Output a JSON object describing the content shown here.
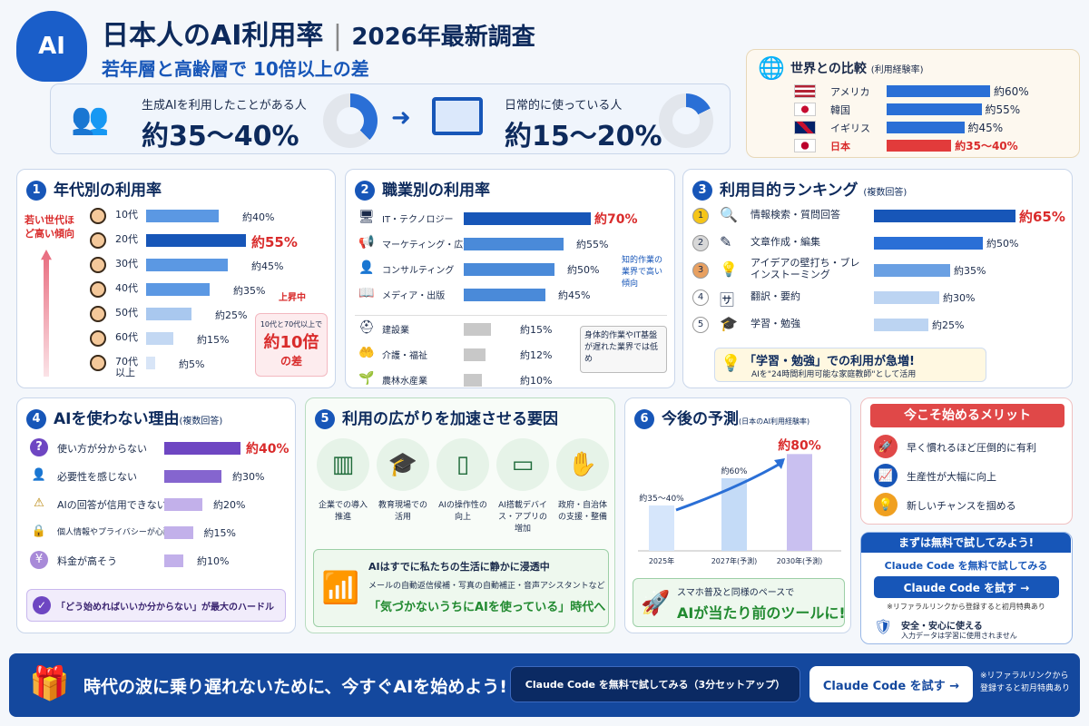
{
  "header": {
    "title": "日本人のAI利用率",
    "year": "2026年最新調査",
    "subtitle": "若年層と高齢層で 10倍以上の差",
    "logo": "AI"
  },
  "stats": {
    "gen_label": "生成AIを利用したことがある人",
    "gen_value": "約35〜40%",
    "daily_label": "日常的に使っている人",
    "daily_value": "約15〜20%",
    "gen_fill": 0.375,
    "daily_fill": 0.175
  },
  "world": {
    "title": "世界との比較",
    "note": "(利用経験率)",
    "items": [
      {
        "name": "アメリカ",
        "value": "約60%",
        "fill": 0.6,
        "flag": "us-flag"
      },
      {
        "name": "韓国",
        "value": "約55%",
        "fill": 0.55,
        "flag": "kr-flag"
      },
      {
        "name": "イギリス",
        "value": "約45%",
        "fill": 0.45,
        "flag": "uk-flag"
      },
      {
        "name": "日本",
        "value": "約35〜40%",
        "fill": 0.375,
        "flag": "jp-flag"
      }
    ]
  },
  "age": {
    "num": "1",
    "title": "年代別の利用率",
    "side": "若い世代ほど高い傾向",
    "rising": "上昇中",
    "gap_pre": "10代と70代以上で",
    "gap_num": "約10倍",
    "gap_post": "の差",
    "items": [
      {
        "label": "10代",
        "value": "約40%",
        "fill": 0.4
      },
      {
        "label": "20代",
        "value": "約55%",
        "fill": 0.55
      },
      {
        "label": "30代",
        "value": "約45%",
        "fill": 0.45
      },
      {
        "label": "40代",
        "value": "約35%",
        "fill": 0.35
      },
      {
        "label": "50代",
        "value": "約25%",
        "fill": 0.25
      },
      {
        "label": "60代",
        "value": "約15%",
        "fill": 0.15
      },
      {
        "label": "70代以上",
        "value": "約5%",
        "fill": 0.05
      }
    ]
  },
  "job": {
    "num": "2",
    "title": "職業別の利用率",
    "note1": "知的作業の業界で高い傾向",
    "note2": "身体的作業やIT基盤が遅れた業界では低め",
    "items": [
      {
        "label": "IT・テクノロジー",
        "value": "約70%",
        "fill": 0.7,
        "icon": "monitor-icon"
      },
      {
        "label": "マーケティング・広告",
        "value": "約55%",
        "fill": 0.55,
        "icon": "megaphone-icon"
      },
      {
        "label": "コンサルティング",
        "value": "約50%",
        "fill": 0.5,
        "icon": "person-icon"
      },
      {
        "label": "メディア・出版",
        "value": "約45%",
        "fill": 0.45,
        "icon": "book-icon"
      },
      {
        "label": "建設業",
        "value": "約15%",
        "fill": 0.15,
        "icon": "helmet-icon"
      },
      {
        "label": "介護・福祉",
        "value": "約12%",
        "fill": 0.12,
        "icon": "care-icon"
      },
      {
        "label": "農林水産業",
        "value": "約10%",
        "fill": 0.1,
        "icon": "plant-icon"
      }
    ]
  },
  "purpose": {
    "num": "3",
    "title": "利用目的ランキング",
    "note": "(複数回答)",
    "callout_title": "「学習・勉強」での利用が急増!",
    "callout_sub": "AIを\"24時間利用可能な家庭教師\"として活用",
    "items": [
      {
        "rank": "1",
        "label": "情報検索・質問回答",
        "value": "約65%",
        "fill": 0.65,
        "icon": "search-icon"
      },
      {
        "rank": "2",
        "label": "文章作成・編集",
        "value": "約50%",
        "fill": 0.5,
        "icon": "pen-icon"
      },
      {
        "rank": "3",
        "label": "アイデアの壁打ち・ブレインストーミング",
        "value": "約35%",
        "fill": 0.35,
        "icon": "bulb-icon"
      },
      {
        "rank": "4",
        "label": "翻訳・要約",
        "value": "約30%",
        "fill": 0.3,
        "icon": "translate-icon"
      },
      {
        "rank": "5",
        "label": "学習・勉強",
        "value": "約25%",
        "fill": 0.25,
        "icon": "cap-icon"
      }
    ]
  },
  "reasons": {
    "num": "4",
    "title": "AIを使わない理由",
    "note": "(複数回答)",
    "footer": "「どう始めればいいか分からない」が最大のハードル",
    "items": [
      {
        "label": "使い方が分からない",
        "value": "約40%",
        "fill": 0.4,
        "icon": "question-icon"
      },
      {
        "label": "必要性を感じない",
        "value": "約30%",
        "fill": 0.3,
        "icon": "person-icon"
      },
      {
        "label": "AIの回答が信用できない",
        "value": "約20%",
        "fill": 0.2,
        "icon": "warning-icon"
      },
      {
        "label": "個人情報やプライバシーが心配",
        "value": "約15%",
        "fill": 0.15,
        "icon": "lock-icon"
      },
      {
        "label": "料金が高そう",
        "value": "約10%",
        "fill": 0.1,
        "icon": "yen-icon"
      }
    ]
  },
  "factors": {
    "num": "5",
    "title": "利用の広がりを加速させる要因",
    "items": [
      {
        "label": "企業での導入推進",
        "icon": "building-icon",
        "glyph": "▥"
      },
      {
        "label": "教育現場での活用",
        "icon": "cap-icon",
        "glyph": "🎓"
      },
      {
        "label": "AIの操作性の向上",
        "icon": "tablet-icon",
        "glyph": "▯"
      },
      {
        "label": "AI搭載デバイス・アプリの増加",
        "icon": "devices-icon",
        "glyph": "▭"
      },
      {
        "label": "政府・自治体の支援・整備",
        "icon": "handshake-icon",
        "glyph": "✋"
      }
    ],
    "box_title": "AIはすでに私たちの生活に静かに浸透中",
    "box_sub": "メールの自動返信候補・写真の自動補正・音声アシスタントなど",
    "box_main": "「気づかないうちにAIを使っている」時代へ"
  },
  "forecast": {
    "num": "6",
    "title": "今後の予測",
    "note": "(日本のAI利用経験率)",
    "footer_pre": "スマホ普及と同様のペースで",
    "footer_main": "AIが当たり前のツールに!"
  },
  "chart_data": {
    "type": "bar",
    "categories": [
      "2025年",
      "2027年(予測)",
      "2030年(予測)"
    ],
    "values": [
      37.5,
      60,
      80
    ],
    "labels": [
      "約35〜40%",
      "約60%",
      "約80%"
    ],
    "ylim": [
      0,
      90
    ]
  },
  "merits": {
    "title": "今こそ始めるメリット",
    "items": [
      {
        "label": "早く慣れるほど圧倒的に有利",
        "icon": "rocket-icon",
        "glyph": "🚀"
      },
      {
        "label": "生産性が大幅に向上",
        "icon": "growth-icon",
        "glyph": "📈"
      },
      {
        "label": "新しいチャンスを掴める",
        "icon": "bulb-icon",
        "glyph": "💡"
      }
    ]
  },
  "trial": {
    "title": "まずは無料で試してみよう!",
    "sub": "Claude Code を無料で試してみる",
    "button": "Claude Code を試す →",
    "note": "※リファラルリンクから登録すると初月特典あり",
    "safe_title": "安全・安心に使える",
    "safe_sub": "入力データは学習に使用されません"
  },
  "banner": {
    "text": "時代の波に乗り遅れないために、今すぐAIを始めよう!",
    "btn1": "Claude Code を無料で試してみる（3分セットアップ）",
    "btn2": "Claude Code を試す →",
    "note": "※リファラルリンクから登録すると初月特典あり"
  }
}
